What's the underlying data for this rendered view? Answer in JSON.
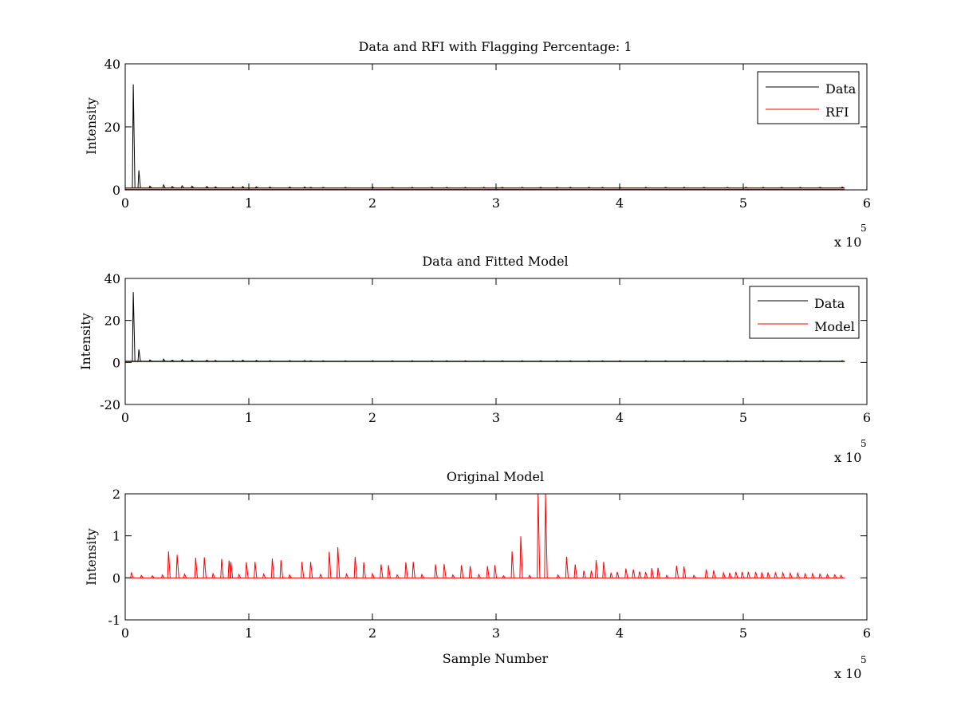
{
  "colors": {
    "data": "#000000",
    "rfi": "#ff0000",
    "model": "#ff0000",
    "axes": "#000000",
    "background": "#ffffff"
  },
  "chart_data": [
    {
      "type": "line",
      "title": "Data and RFI with Flagging Percentage: 1",
      "xlabel": "",
      "ylabel": "Intensity",
      "xlim": [
        0,
        600000
      ],
      "ylim": [
        0,
        40
      ],
      "xticks": [
        0,
        1,
        2,
        3,
        4,
        5,
        6
      ],
      "xtick_labels": [
        "0",
        "1",
        "2",
        "3",
        "4",
        "5",
        "6"
      ],
      "yticks": [
        0,
        20,
        40
      ],
      "ytick_labels": [
        "0",
        "20",
        "40"
      ],
      "x_multiplier": {
        "base": "x 10",
        "exponent": "5"
      },
      "legend": {
        "placement": "top-right",
        "entries": [
          "Data",
          "RFI"
        ]
      },
      "grid": false,
      "series": [
        {
          "name": "Data",
          "baseline": 0.6,
          "x_range": [
            0,
            582000
          ],
          "spikes": [
            [
              6500,
              33.5
            ],
            [
              11000,
              6.2
            ],
            [
              20000,
              1.2
            ],
            [
              31000,
              1.6
            ],
            [
              38000,
              1.1
            ],
            [
              46000,
              1.3
            ],
            [
              54000,
              1.2
            ],
            [
              66000,
              1.1
            ],
            [
              73000,
              1.0
            ],
            [
              87000,
              1.0
            ],
            [
              95000,
              1.1
            ],
            [
              106000,
              1.0
            ],
            [
              117000,
              0.9
            ],
            [
              133000,
              0.9
            ],
            [
              145000,
              0.9
            ],
            [
              150000,
              0.8
            ],
            [
              160000,
              0.8
            ],
            [
              178000,
              0.8
            ],
            [
              200000,
              0.9
            ],
            [
              216000,
              0.8
            ],
            [
              232000,
              0.8
            ],
            [
              248000,
              0.8
            ],
            [
              260000,
              0.8
            ],
            [
              275000,
              0.8
            ],
            [
              290000,
              0.8
            ],
            [
              305000,
              0.8
            ],
            [
              321000,
              0.8
            ],
            [
              336000,
              0.8
            ],
            [
              349000,
              0.8
            ],
            [
              360000,
              0.8
            ],
            [
              375000,
              0.8
            ],
            [
              386000,
              0.8
            ],
            [
              400000,
              0.8
            ],
            [
              421000,
              0.8
            ],
            [
              437000,
              0.8
            ],
            [
              452000,
              0.8
            ],
            [
              468000,
              0.8
            ],
            [
              487000,
              0.8
            ],
            [
              502000,
              0.8
            ],
            [
              516000,
              0.8
            ],
            [
              531000,
              0.8
            ],
            [
              546000,
              0.8
            ],
            [
              562000,
              0.8
            ],
            [
              580000,
              0.9
            ]
          ]
        },
        {
          "name": "RFI",
          "values": [
            [
              0,
              0.2
            ],
            [
              582000,
              0.2
            ]
          ]
        }
      ]
    },
    {
      "type": "line",
      "title": "Data and Fitted Model",
      "xlabel": "",
      "ylabel": "Intensity",
      "xlim": [
        0,
        600000
      ],
      "ylim": [
        -20,
        40
      ],
      "xticks": [
        0,
        1,
        2,
        3,
        4,
        5,
        6
      ],
      "xtick_labels": [
        "0",
        "1",
        "2",
        "3",
        "4",
        "5",
        "6"
      ],
      "yticks": [
        -20,
        0,
        20,
        40
      ],
      "ytick_labels": [
        "-20",
        "0",
        "20",
        "40"
      ],
      "x_multiplier": {
        "base": "x 10",
        "exponent": "5"
      },
      "legend": {
        "placement": "top-right",
        "entries": [
          "Data",
          "Model"
        ]
      },
      "grid": false,
      "series": [
        {
          "name": "Data",
          "baseline": 0.6,
          "x_range": [
            0,
            582000
          ],
          "spikes": [
            [
              6500,
              33.5
            ],
            [
              11000,
              6.2
            ],
            [
              20000,
              1.2
            ],
            [
              31000,
              1.6
            ],
            [
              38000,
              1.1
            ],
            [
              46000,
              1.3
            ],
            [
              54000,
              1.2
            ],
            [
              66000,
              1.1
            ],
            [
              73000,
              1.0
            ],
            [
              87000,
              1.0
            ],
            [
              95000,
              1.1
            ],
            [
              106000,
              1.0
            ],
            [
              117000,
              0.9
            ],
            [
              133000,
              0.9
            ],
            [
              145000,
              0.9
            ],
            [
              150000,
              0.8
            ],
            [
              160000,
              0.8
            ],
            [
              178000,
              0.8
            ],
            [
              200000,
              0.9
            ],
            [
              216000,
              0.8
            ],
            [
              232000,
              0.8
            ],
            [
              248000,
              0.8
            ],
            [
              260000,
              0.8
            ],
            [
              275000,
              0.8
            ],
            [
              290000,
              0.8
            ],
            [
              305000,
              0.8
            ],
            [
              321000,
              0.8
            ],
            [
              336000,
              0.8
            ],
            [
              349000,
              0.8
            ],
            [
              360000,
              0.8
            ],
            [
              375000,
              0.8
            ],
            [
              386000,
              0.8
            ],
            [
              400000,
              0.8
            ],
            [
              421000,
              0.8
            ],
            [
              437000,
              0.8
            ],
            [
              452000,
              0.8
            ],
            [
              468000,
              0.8
            ],
            [
              487000,
              0.8
            ],
            [
              502000,
              0.8
            ],
            [
              516000,
              0.8
            ],
            [
              531000,
              0.8
            ],
            [
              546000,
              0.8
            ],
            [
              562000,
              0.8
            ],
            [
              580000,
              0.9
            ]
          ]
        },
        {
          "name": "Model",
          "values": [
            [
              0,
              0.3
            ],
            [
              582000,
              0.3
            ]
          ]
        }
      ]
    },
    {
      "type": "line",
      "title": "Original Model",
      "xlabel": "Sample Number",
      "ylabel": "Intensity",
      "xlim": [
        0,
        600000
      ],
      "ylim": [
        -1,
        2
      ],
      "xticks": [
        0,
        1,
        2,
        3,
        4,
        5,
        6
      ],
      "xtick_labels": [
        "0",
        "1",
        "2",
        "3",
        "4",
        "5",
        "6"
      ],
      "yticks": [
        -1,
        0,
        1,
        2
      ],
      "ytick_labels": [
        "-1",
        "0",
        "1",
        "2"
      ],
      "x_multiplier": {
        "base": "x 10",
        "exponent": "5"
      },
      "legend": null,
      "grid": false,
      "series": [
        {
          "name": "",
          "baseline": 0,
          "x_range": [
            0,
            582000
          ],
          "spikes": [
            [
              5000,
              0.13
            ],
            [
              13000,
              0.06
            ],
            [
              22000,
              0.05
            ],
            [
              30000,
              0.07
            ],
            [
              35000,
              0.63
            ],
            [
              42000,
              0.55
            ],
            [
              48000,
              0.09
            ],
            [
              57000,
              0.48
            ],
            [
              64000,
              0.49
            ],
            [
              71000,
              0.1
            ],
            [
              78000,
              0.45
            ],
            [
              84000,
              0.41
            ],
            [
              85500,
              0.38
            ],
            [
              92000,
              0.08
            ],
            [
              98000,
              0.37
            ],
            [
              105000,
              0.38
            ],
            [
              112000,
              0.09
            ],
            [
              119000,
              0.46
            ],
            [
              126000,
              0.42
            ],
            [
              133000,
              0.07
            ],
            [
              143000,
              0.38
            ],
            [
              150000,
              0.38
            ],
            [
              158000,
              0.08
            ],
            [
              165000,
              0.62
            ],
            [
              172000,
              0.73
            ],
            [
              179000,
              0.09
            ],
            [
              186000,
              0.5
            ],
            [
              193000,
              0.37
            ],
            [
              200000,
              0.1
            ],
            [
              207000,
              0.32
            ],
            [
              213000,
              0.3
            ],
            [
              220000,
              0.07
            ],
            [
              227000,
              0.37
            ],
            [
              233000,
              0.38
            ],
            [
              240000,
              0.08
            ],
            [
              251000,
              0.32
            ],
            [
              258000,
              0.33
            ],
            [
              265000,
              0.07
            ],
            [
              272000,
              0.3
            ],
            [
              279000,
              0.28
            ],
            [
              286000,
              0.08
            ],
            [
              293000,
              0.28
            ],
            [
              299000,
              0.3
            ],
            [
              306000,
              0.05
            ],
            [
              313000,
              0.63
            ],
            [
              320000,
              0.99
            ],
            [
              327000,
              0.06
            ],
            [
              334000,
              2.1
            ],
            [
              340000,
              2.1
            ],
            [
              350000,
              0.07
            ],
            [
              357000,
              0.5
            ],
            [
              364000,
              0.32
            ],
            [
              371000,
              0.17
            ],
            [
              377000,
              0.17
            ],
            [
              381000,
              0.42
            ],
            [
              387000,
              0.38
            ],
            [
              393000,
              0.11
            ],
            [
              398000,
              0.14
            ],
            [
              405000,
              0.22
            ],
            [
              411000,
              0.2
            ],
            [
              416000,
              0.15
            ],
            [
              421000,
              0.14
            ],
            [
              426000,
              0.23
            ],
            [
              431000,
              0.24
            ],
            [
              438000,
              0.06
            ],
            [
              446000,
              0.29
            ],
            [
              452000,
              0.27
            ],
            [
              460000,
              0.06
            ],
            [
              470000,
              0.2
            ],
            [
              476000,
              0.18
            ],
            [
              484000,
              0.12
            ],
            [
              489000,
              0.12
            ],
            [
              494000,
              0.14
            ],
            [
              499000,
              0.14
            ],
            [
              504000,
              0.14
            ],
            [
              510000,
              0.14
            ],
            [
              515000,
              0.13
            ],
            [
              520000,
              0.13
            ],
            [
              526000,
              0.12
            ],
            [
              532000,
              0.12
            ],
            [
              538000,
              0.11
            ],
            [
              544000,
              0.11
            ],
            [
              550000,
              0.1
            ],
            [
              556000,
              0.1
            ],
            [
              562000,
              0.09
            ],
            [
              568000,
              0.08
            ],
            [
              574000,
              0.07
            ],
            [
              579000,
              0.06
            ]
          ]
        }
      ]
    }
  ]
}
